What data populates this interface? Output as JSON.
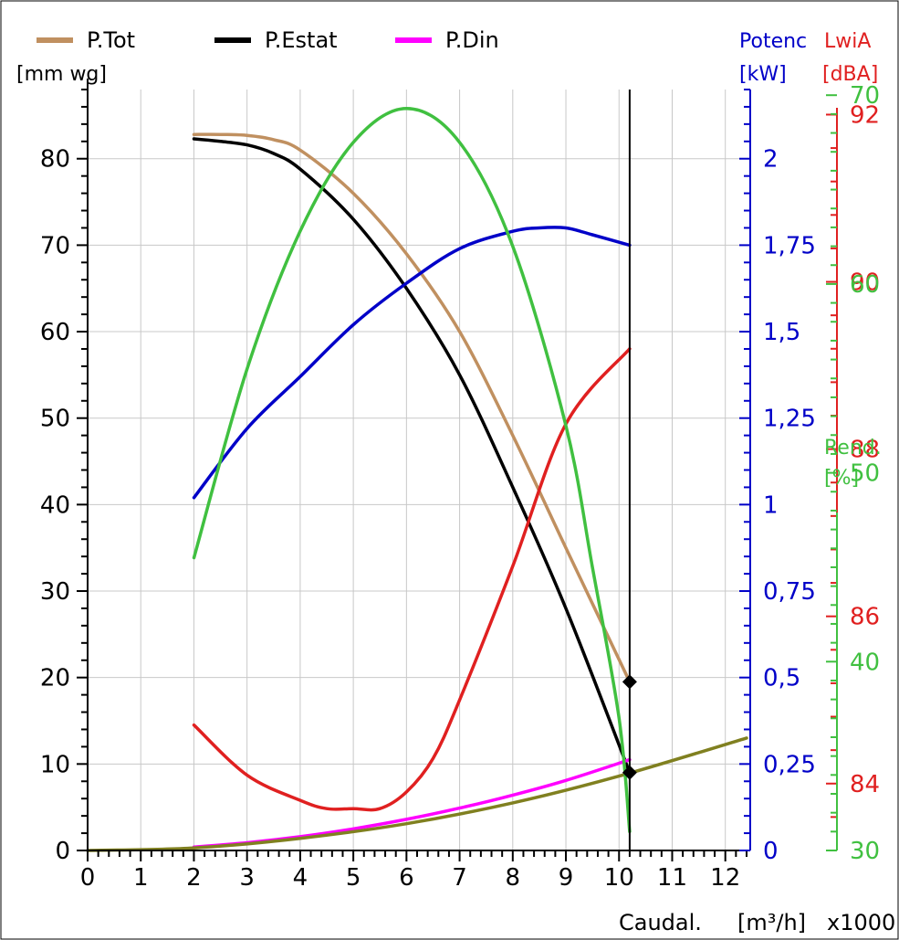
{
  "chart_data": {
    "type": "line",
    "x": {
      "label": "Caudal.",
      "unit": "[m³/h]",
      "multiplier": "x1000",
      "lim": [
        0,
        12.4
      ],
      "ticks": [
        0,
        1,
        2,
        3,
        4,
        5,
        6,
        7,
        8,
        9,
        10,
        11,
        12
      ],
      "tick_labels": [
        "0",
        "1",
        "2",
        "3",
        "4",
        "5",
        "6",
        "7",
        "8",
        "9",
        "10",
        "11",
        "12"
      ]
    },
    "axes": {
      "pressure": {
        "unit": "[mm wg]",
        "lim": [
          0,
          88
        ],
        "color": "#000000",
        "ticks": [
          0,
          10,
          20,
          30,
          40,
          50,
          60,
          70,
          80
        ],
        "tick_labels": [
          "0",
          "10",
          "20",
          "30",
          "40",
          "50",
          "60",
          "70",
          "80"
        ]
      },
      "power": {
        "title": "Potenc",
        "unit": "[kW]",
        "lim": [
          0,
          2.2
        ],
        "color": "#0000c8",
        "ticks": [
          0,
          0.25,
          0.5,
          0.75,
          1,
          1.25,
          1.5,
          1.75,
          2
        ],
        "tick_labels": [
          "0",
          "0,25",
          "0,5",
          "0,75",
          "1",
          "1,25",
          "1,5",
          "1,75",
          "2"
        ]
      },
      "noise": {
        "title": "LwiA",
        "unit": "[dBA]",
        "lim": [
          83.2,
          92.3
        ],
        "color": "#e02020",
        "ticks": [
          84,
          86,
          88,
          90,
          92
        ],
        "tick_labels": [
          "84",
          "86",
          "88",
          "90",
          "92"
        ]
      },
      "efficiency": {
        "title": "Rend.",
        "unit": "[%]",
        "lim": [
          30,
          70.3
        ],
        "color": "#40c040",
        "ticks": [
          30,
          40,
          50,
          60,
          70
        ],
        "tick_labels": [
          "30",
          "40",
          "50",
          "60",
          "70"
        ]
      }
    },
    "legend": [
      {
        "name": "P.Tot",
        "color": "#c09060"
      },
      {
        "name": "P.Estat",
        "color": "#000000"
      },
      {
        "name": "P.Din",
        "color": "#ff00ff"
      }
    ],
    "series": [
      {
        "key": "ptot",
        "name": "P.Tot",
        "axis": "pressure",
        "color": "#c09060",
        "x": [
          2,
          2.5,
          3,
          3.5,
          4,
          5,
          6,
          7,
          8,
          9,
          10.2
        ],
        "y": [
          82.8,
          82.8,
          82.7,
          82.2,
          81,
          76,
          69,
          60,
          48,
          35,
          19.5
        ]
      },
      {
        "key": "pstat",
        "name": "P.Estat",
        "axis": "pressure",
        "color": "#000000",
        "x": [
          2,
          2.5,
          3,
          3.5,
          4,
          5,
          6,
          7,
          8,
          9,
          10.2
        ],
        "y": [
          82.3,
          82,
          81.6,
          80.6,
          78.8,
          73,
          65,
          55,
          42,
          28,
          9
        ]
      },
      {
        "key": "pdin",
        "name": "P.Din",
        "axis": "pressure",
        "color": "#ff00ff",
        "x": [
          2,
          3,
          4,
          5,
          6,
          7,
          8,
          9,
          10.2
        ],
        "y": [
          0.4,
          0.9,
          1.6,
          2.5,
          3.6,
          4.9,
          6.4,
          8.1,
          10.5
        ]
      },
      {
        "key": "system",
        "axis": "pressure",
        "color": "#808020",
        "x": [
          0,
          2,
          4,
          6,
          8,
          10,
          12.4
        ],
        "y": [
          0,
          0.3,
          1.4,
          3.1,
          5.5,
          8.6,
          13
        ]
      },
      {
        "key": "power",
        "axis": "power",
        "color": "#0000c8",
        "x": [
          2,
          3,
          4,
          5,
          6,
          7,
          8,
          8.5,
          9,
          9.5,
          10.2
        ],
        "y": [
          1.02,
          1.22,
          1.37,
          1.52,
          1.64,
          1.74,
          1.79,
          1.8,
          1.8,
          1.78,
          1.75
        ]
      },
      {
        "key": "noise",
        "axis": "noise",
        "color": "#e02020",
        "x": [
          2,
          3,
          4,
          4.5,
          5,
          5.5,
          6,
          6.5,
          7,
          8,
          9,
          10.2
        ],
        "y": [
          84.7,
          84.1,
          83.8,
          83.7,
          83.7,
          83.7,
          83.9,
          84.3,
          85,
          86.6,
          88.3,
          89.2
        ]
      },
      {
        "key": "efficiency",
        "axis": "efficiency",
        "color": "#40c040",
        "x": [
          2,
          3,
          4,
          5,
          6,
          7,
          8,
          9,
          9.5,
          10,
          10.2
        ],
        "y": [
          45.5,
          55.5,
          62.8,
          67.5,
          69.3,
          67.5,
          62,
          52.5,
          45,
          37,
          31
        ]
      }
    ],
    "operating_point": {
      "x": 10.2,
      "markers": [
        {
          "axis": "pressure",
          "y": 19.5
        },
        {
          "axis": "pressure",
          "y": 9
        }
      ]
    },
    "grid": true
  }
}
